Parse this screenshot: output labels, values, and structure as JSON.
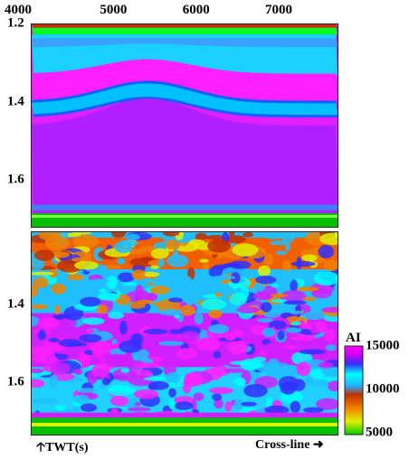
{
  "chart_data": {
    "type": "heatmap",
    "x_axis": {
      "label": "Cross-line",
      "range": [
        4000,
        7700
      ],
      "ticks": [
        4000,
        5000,
        6000,
        7000
      ]
    },
    "y_axis": {
      "label": "TWT(s)",
      "range": [
        1.2,
        1.8
      ],
      "ticks_top": [
        1.2,
        1.4,
        1.6
      ],
      "ticks_bottom": [
        1.4,
        1.6
      ]
    },
    "colorbar": {
      "label": "AI",
      "ticks": [
        15000,
        10000,
        5000
      ],
      "range": [
        5000,
        15000
      ],
      "colors": [
        "#00cc00",
        "#e0f000",
        "#f08000",
        "#c03000",
        "#20b0ff",
        "#00ffff",
        "#3030ff",
        "#d000f0",
        "#ff00ff"
      ]
    },
    "panels": [
      {
        "id": "top",
        "layers": [
          {
            "twt_range": [
              1.2,
              1.21
            ],
            "ai": 11000,
            "color": "#d03000"
          },
          {
            "twt_range": [
              1.21,
              1.23
            ],
            "ai": 8500,
            "color": "#00ff20"
          },
          {
            "twt_range": [
              1.23,
              1.33
            ],
            "ai": 11500,
            "color": "#20c8ff"
          },
          {
            "twt_range": [
              1.33,
              1.41
            ],
            "ai": 14800,
            "color": "#ff20ff"
          },
          {
            "twt_range": [
              1.41,
              1.46
            ],
            "ai": 12000,
            "color": "#00c0ff"
          },
          {
            "twt_range": [
              1.46,
              1.76
            ],
            "ai": 14700,
            "color": "#e020ff"
          },
          {
            "twt_range": [
              1.76,
              1.8
            ],
            "ai": 5500,
            "color": "#00c000"
          }
        ]
      },
      {
        "id": "bottom",
        "layers": [
          {
            "twt_range": [
              1.2,
              1.31
            ],
            "ai": 10500,
            "color": "#f06000"
          },
          {
            "twt_range": [
              1.31,
              1.44
            ],
            "ai": 12000,
            "color": "#20c0ff"
          },
          {
            "twt_range": [
              1.44,
              1.6
            ],
            "ai": 14500,
            "color": "#d020ff"
          },
          {
            "twt_range": [
              1.6,
              1.75
            ],
            "ai": 12500,
            "color": "#20d0ff"
          },
          {
            "twt_range": [
              1.75,
              1.8
            ],
            "ai": 5500,
            "color": "#00c000"
          }
        ]
      }
    ]
  }
}
